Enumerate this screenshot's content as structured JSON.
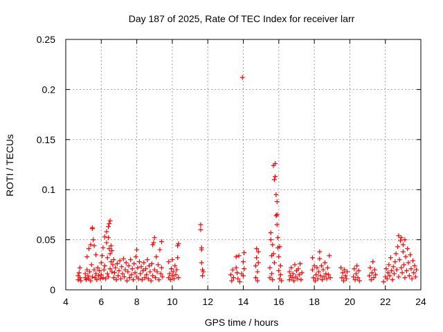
{
  "chart_data": {
    "type": "scatter",
    "title": "Day 187 of 2025, Rate Of TEC Index for receiver larr",
    "xlabel": "GPS time / hours",
    "ylabel": "ROTI / TECUs",
    "xlim": [
      4,
      24
    ],
    "ylim": [
      0,
      0.25
    ],
    "grid": true,
    "marker": "+",
    "series_color": "#ff0000",
    "x_ticks": [
      4,
      6,
      8,
      10,
      12,
      14,
      16,
      18,
      20,
      22,
      24
    ],
    "y_ticks": [
      {
        "value": 0,
        "label": "0"
      },
      {
        "value": 0.05,
        "label": "0.05"
      },
      {
        "value": 0.1,
        "label": "0.1"
      },
      {
        "value": 0.15,
        "label": "0.15"
      },
      {
        "value": 0.2,
        "label": "0.2"
      },
      {
        "value": 0.25,
        "label": "0.25"
      }
    ],
    "series": [
      {
        "name": "ROTI",
        "points": [
          [
            4.7,
            0.01
          ],
          [
            4.7,
            0.014
          ],
          [
            4.75,
            0.017
          ],
          [
            4.8,
            0.022
          ],
          [
            4.8,
            0.012
          ],
          [
            4.85,
            0.009
          ],
          [
            5.1,
            0.012
          ],
          [
            5.1,
            0.016
          ],
          [
            5.15,
            0.01
          ],
          [
            5.2,
            0.02
          ],
          [
            5.2,
            0.033
          ],
          [
            5.25,
            0.014
          ],
          [
            5.3,
            0.041
          ],
          [
            5.3,
            0.011
          ],
          [
            5.35,
            0.018
          ],
          [
            5.4,
            0.045
          ],
          [
            5.4,
            0.009
          ],
          [
            5.45,
            0.025
          ],
          [
            5.5,
            0.061
          ],
          [
            5.5,
            0.062
          ],
          [
            5.5,
            0.013
          ],
          [
            5.55,
            0.05
          ],
          [
            5.6,
            0.044
          ],
          [
            5.6,
            0.02
          ],
          [
            5.65,
            0.012
          ],
          [
            5.7,
            0.035
          ],
          [
            5.7,
            0.016
          ],
          [
            5.75,
            0.01
          ],
          [
            5.8,
            0.022
          ],
          [
            5.85,
            0.014
          ],
          [
            5.9,
            0.019
          ],
          [
            5.95,
            0.011
          ],
          [
            6.0,
            0.027
          ],
          [
            6.0,
            0.015
          ],
          [
            6.05,
            0.034
          ],
          [
            6.1,
            0.012
          ],
          [
            6.1,
            0.042
          ],
          [
            6.15,
            0.02
          ],
          [
            6.2,
            0.053
          ],
          [
            6.2,
            0.024
          ],
          [
            6.25,
            0.011
          ],
          [
            6.3,
            0.058
          ],
          [
            6.3,
            0.047
          ],
          [
            6.35,
            0.032
          ],
          [
            6.35,
            0.016
          ],
          [
            6.4,
            0.063
          ],
          [
            6.4,
            0.052
          ],
          [
            6.4,
            0.013
          ],
          [
            6.45,
            0.041
          ],
          [
            6.45,
            0.066
          ],
          [
            6.5,
            0.036
          ],
          [
            6.5,
            0.021
          ],
          [
            6.5,
            0.069
          ],
          [
            6.55,
            0.044
          ],
          [
            6.55,
            0.028
          ],
          [
            6.6,
            0.018
          ],
          [
            6.6,
            0.039
          ],
          [
            6.65,
            0.025
          ],
          [
            6.7,
            0.012
          ],
          [
            6.7,
            0.03
          ],
          [
            6.75,
            0.017
          ],
          [
            6.8,
            0.022
          ],
          [
            6.85,
            0.01
          ],
          [
            6.9,
            0.026
          ],
          [
            6.95,
            0.014
          ],
          [
            7.0,
            0.019
          ],
          [
            7.05,
            0.029
          ],
          [
            7.1,
            0.011
          ],
          [
            7.15,
            0.023
          ],
          [
            7.2,
            0.016
          ],
          [
            7.25,
            0.031
          ],
          [
            7.3,
            0.013
          ],
          [
            7.35,
            0.02
          ],
          [
            7.4,
            0.027
          ],
          [
            7.45,
            0.009
          ],
          [
            7.5,
            0.018
          ],
          [
            7.55,
            0.024
          ],
          [
            7.6,
            0.012
          ],
          [
            7.65,
            0.03
          ],
          [
            7.7,
            0.015
          ],
          [
            7.75,
            0.021
          ],
          [
            7.8,
            0.01
          ],
          [
            7.85,
            0.026
          ],
          [
            7.9,
            0.017
          ],
          [
            7.95,
            0.033
          ],
          [
            8.0,
            0.013
          ],
          [
            8.0,
            0.04
          ],
          [
            8.05,
            0.022
          ],
          [
            8.1,
            0.011
          ],
          [
            8.15,
            0.028
          ],
          [
            8.2,
            0.016
          ],
          [
            8.25,
            0.023
          ],
          [
            8.3,
            0.01
          ],
          [
            8.35,
            0.019
          ],
          [
            8.4,
            0.027
          ],
          [
            8.45,
            0.012
          ],
          [
            8.5,
            0.021
          ],
          [
            8.55,
            0.015
          ],
          [
            8.6,
            0.03
          ],
          [
            8.65,
            0.011
          ],
          [
            8.7,
            0.024
          ],
          [
            8.75,
            0.018
          ],
          [
            8.8,
            0.009
          ],
          [
            8.85,
            0.026
          ],
          [
            8.9,
            0.045
          ],
          [
            8.9,
            0.014
          ],
          [
            8.95,
            0.047
          ],
          [
            9.0,
            0.02
          ],
          [
            9.0,
            0.052
          ],
          [
            9.05,
            0.012
          ],
          [
            9.1,
            0.033
          ],
          [
            9.15,
            0.018
          ],
          [
            9.2,
            0.025
          ],
          [
            9.25,
            0.01
          ],
          [
            9.3,
            0.04
          ],
          [
            9.35,
            0.016
          ],
          [
            9.4,
            0.048
          ],
          [
            9.4,
            0.022
          ],
          [
            9.45,
            0.013
          ],
          [
            9.8,
            0.012
          ],
          [
            9.8,
            0.028
          ],
          [
            9.85,
            0.016
          ],
          [
            9.9,
            0.01
          ],
          [
            9.95,
            0.021
          ],
          [
            10.0,
            0.014
          ],
          [
            10.0,
            0.03
          ],
          [
            10.05,
            0.018
          ],
          [
            10.1,
            0.011
          ],
          [
            10.15,
            0.024
          ],
          [
            10.2,
            0.015
          ],
          [
            10.25,
            0.02
          ],
          [
            10.3,
            0.032
          ],
          [
            10.3,
            0.044
          ],
          [
            10.35,
            0.046
          ],
          [
            10.35,
            0.012
          ],
          [
            11.6,
            0.065
          ],
          [
            11.6,
            0.06
          ],
          [
            11.65,
            0.04
          ],
          [
            11.65,
            0.042
          ],
          [
            11.65,
            0.027
          ],
          [
            11.7,
            0.02
          ],
          [
            11.7,
            0.014
          ],
          [
            11.75,
            0.018
          ],
          [
            13.3,
            0.015
          ],
          [
            13.35,
            0.009
          ],
          [
            13.4,
            0.02
          ],
          [
            13.45,
            0.012
          ],
          [
            13.6,
            0.022
          ],
          [
            13.6,
            0.033
          ],
          [
            13.65,
            0.017
          ],
          [
            13.7,
            0.011
          ],
          [
            13.75,
            0.034
          ],
          [
            13.8,
            0.008
          ],
          [
            13.9,
            0.016
          ],
          [
            13.95,
            0.212
          ],
          [
            14.0,
            0.028
          ],
          [
            14.0,
            0.014
          ],
          [
            14.05,
            0.021
          ],
          [
            14.05,
            0.037
          ],
          [
            14.7,
            0.012
          ],
          [
            14.7,
            0.024
          ],
          [
            14.75,
            0.032
          ],
          [
            14.75,
            0.041
          ],
          [
            14.8,
            0.018
          ],
          [
            14.8,
            0.009
          ],
          [
            14.85,
            0.027
          ],
          [
            14.85,
            0.038
          ],
          [
            15.5,
            0.012
          ],
          [
            15.5,
            0.022
          ],
          [
            15.55,
            0.05
          ],
          [
            15.55,
            0.057
          ],
          [
            15.6,
            0.034
          ],
          [
            15.6,
            0.016
          ],
          [
            15.65,
            0.045
          ],
          [
            15.65,
            0.01
          ],
          [
            15.7,
            0.036
          ],
          [
            15.7,
            0.124
          ],
          [
            15.75,
            0.11
          ],
          [
            15.75,
            0.027
          ],
          [
            15.8,
            0.126
          ],
          [
            15.8,
            0.113
          ],
          [
            15.85,
            0.074
          ],
          [
            15.85,
            0.095
          ],
          [
            15.9,
            0.088
          ],
          [
            15.9,
            0.075
          ],
          [
            15.9,
            0.065
          ],
          [
            15.95,
            0.052
          ],
          [
            15.95,
            0.042
          ],
          [
            16.0,
            0.033
          ],
          [
            16.0,
            0.019
          ],
          [
            16.05,
            0.043
          ],
          [
            16.05,
            0.011
          ],
          [
            16.1,
            0.024
          ],
          [
            16.1,
            0.015
          ],
          [
            16.15,
            0.009
          ],
          [
            16.6,
            0.01
          ],
          [
            16.6,
            0.018
          ],
          [
            16.65,
            0.014
          ],
          [
            16.7,
            0.022
          ],
          [
            16.75,
            0.012
          ],
          [
            16.8,
            0.016
          ],
          [
            16.85,
            0.009
          ],
          [
            16.9,
            0.025
          ],
          [
            16.95,
            0.013
          ],
          [
            17.0,
            0.019
          ],
          [
            17.05,
            0.011
          ],
          [
            17.1,
            0.021
          ],
          [
            17.15,
            0.015
          ],
          [
            17.2,
            0.026
          ],
          [
            17.25,
            0.01
          ],
          [
            17.3,
            0.017
          ],
          [
            17.9,
            0.032
          ],
          [
            17.9,
            0.02
          ],
          [
            17.95,
            0.012
          ],
          [
            18.0,
            0.024
          ],
          [
            18.05,
            0.009
          ],
          [
            18.1,
            0.015
          ],
          [
            18.15,
            0.022
          ],
          [
            18.2,
            0.011
          ],
          [
            18.25,
            0.018
          ],
          [
            18.3,
            0.038
          ],
          [
            18.3,
            0.031
          ],
          [
            18.35,
            0.014
          ],
          [
            18.4,
            0.024
          ],
          [
            18.45,
            0.01
          ],
          [
            18.5,
            0.02
          ],
          [
            18.55,
            0.013
          ],
          [
            18.6,
            0.027
          ],
          [
            18.65,
            0.016
          ],
          [
            18.7,
            0.011
          ],
          [
            18.75,
            0.022
          ],
          [
            18.8,
            0.015
          ],
          [
            18.85,
            0.034
          ],
          [
            18.9,
            0.012
          ],
          [
            19.5,
            0.022
          ],
          [
            19.55,
            0.012
          ],
          [
            19.6,
            0.017
          ],
          [
            19.65,
            0.009
          ],
          [
            19.7,
            0.02
          ],
          [
            19.75,
            0.014
          ],
          [
            19.8,
            0.011
          ],
          [
            19.85,
            0.018
          ],
          [
            20.2,
            0.013
          ],
          [
            20.25,
            0.021
          ],
          [
            20.3,
            0.01
          ],
          [
            20.35,
            0.016
          ],
          [
            20.4,
            0.024
          ],
          [
            20.45,
            0.012
          ],
          [
            20.5,
            0.019
          ],
          [
            20.55,
            0.009
          ],
          [
            21.1,
            0.014
          ],
          [
            21.15,
            0.022
          ],
          [
            21.2,
            0.01
          ],
          [
            21.25,
            0.017
          ],
          [
            21.3,
            0.028
          ],
          [
            21.35,
            0.012
          ],
          [
            21.4,
            0.02
          ],
          [
            21.45,
            0.015
          ],
          [
            21.9,
            0.008
          ],
          [
            22.0,
            0.013
          ],
          [
            22.05,
            0.021
          ],
          [
            22.1,
            0.011
          ],
          [
            22.15,
            0.017
          ],
          [
            22.2,
            0.025
          ],
          [
            22.25,
            0.014
          ],
          [
            22.3,
            0.032
          ],
          [
            22.35,
            0.019
          ],
          [
            22.4,
            0.01
          ],
          [
            22.45,
            0.023
          ],
          [
            22.5,
            0.016
          ],
          [
            22.55,
            0.028
          ],
          [
            22.6,
            0.036
          ],
          [
            22.65,
            0.02
          ],
          [
            22.7,
            0.043
          ],
          [
            22.75,
            0.054
          ],
          [
            22.75,
            0.013
          ],
          [
            22.8,
            0.03
          ],
          [
            22.85,
            0.049
          ],
          [
            22.9,
            0.022
          ],
          [
            22.9,
            0.052
          ],
          [
            22.95,
            0.017
          ],
          [
            23.0,
            0.038
          ],
          [
            23.0,
            0.045
          ],
          [
            23.05,
            0.025
          ],
          [
            23.1,
            0.012
          ],
          [
            23.1,
            0.05
          ],
          [
            23.15,
            0.033
          ],
          [
            23.2,
            0.019
          ],
          [
            23.25,
            0.041
          ],
          [
            23.3,
            0.027
          ],
          [
            23.35,
            0.014
          ],
          [
            23.4,
            0.035
          ],
          [
            23.45,
            0.021
          ],
          [
            23.5,
            0.011
          ],
          [
            23.55,
            0.029
          ],
          [
            23.6,
            0.017
          ],
          [
            23.65,
            0.024
          ],
          [
            23.7,
            0.013
          ],
          [
            23.75,
            0.02
          ]
        ]
      }
    ]
  }
}
